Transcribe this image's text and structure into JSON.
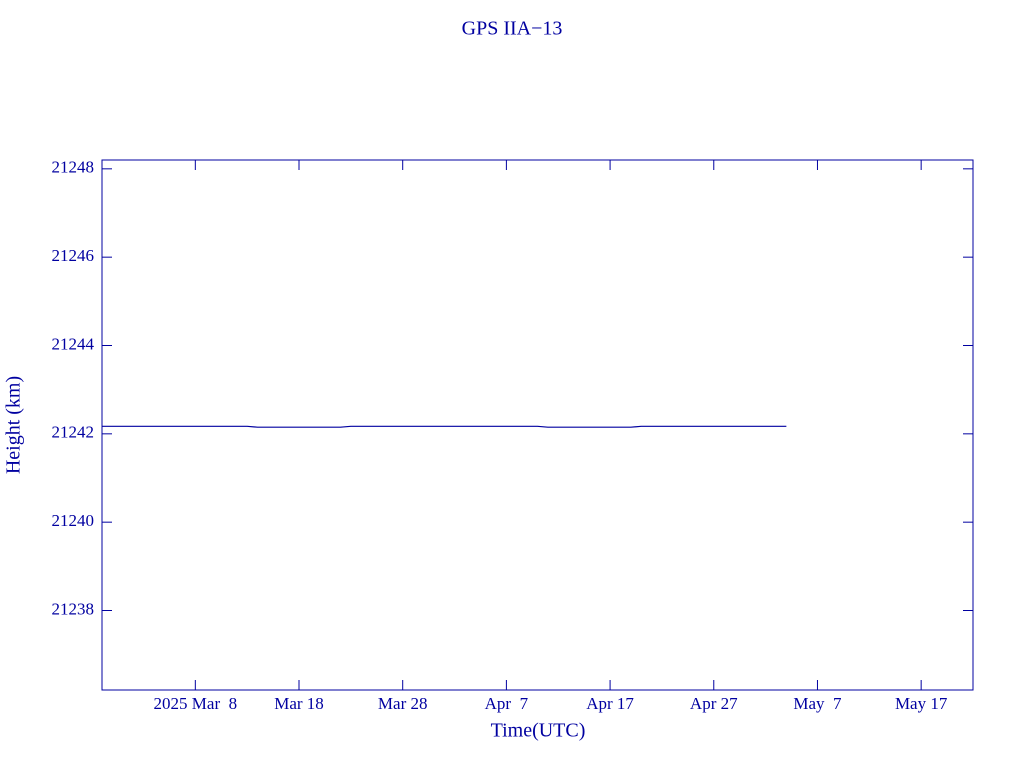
{
  "chart_data": {
    "type": "line",
    "title": "GPS IIA−13",
    "x_label": "Time(UTC)",
    "y_label": "Height (km)",
    "x": [
      "2025-02-27",
      "2025-03-13",
      "2025-03-14",
      "2025-03-22",
      "2025-03-23",
      "2025-04-10",
      "2025-04-11",
      "2025-04-19",
      "2025-04-20",
      "2025-05-04"
    ],
    "series": [
      {
        "name": "GPS IIA−13",
        "color": "#0000a0",
        "values": [
          21242.17,
          21242.17,
          21242.15,
          21242.15,
          21242.17,
          21242.17,
          21242.15,
          21242.15,
          21242.17,
          21242.17
        ]
      }
    ],
    "xlim": [
      "2025-02-27",
      "2025-05-22"
    ],
    "xticks": [
      {
        "value": "2025-03-08",
        "label": "2025 Mar  8"
      },
      {
        "value": "2025-03-18",
        "label": "Mar 18"
      },
      {
        "value": "2025-03-28",
        "label": "Mar 28"
      },
      {
        "value": "2025-04-07",
        "label": "Apr  7"
      },
      {
        "value": "2025-04-17",
        "label": "Apr 17"
      },
      {
        "value": "2025-04-27",
        "label": "Apr 27"
      },
      {
        "value": "2025-05-07",
        "label": "May  7"
      },
      {
        "value": "2025-05-17",
        "label": "May 17"
      }
    ],
    "ylim": [
      21236.2,
      21248.2
    ],
    "yticks": [
      21238,
      21240,
      21242,
      21244,
      21246,
      21248
    ],
    "grid": false
  }
}
